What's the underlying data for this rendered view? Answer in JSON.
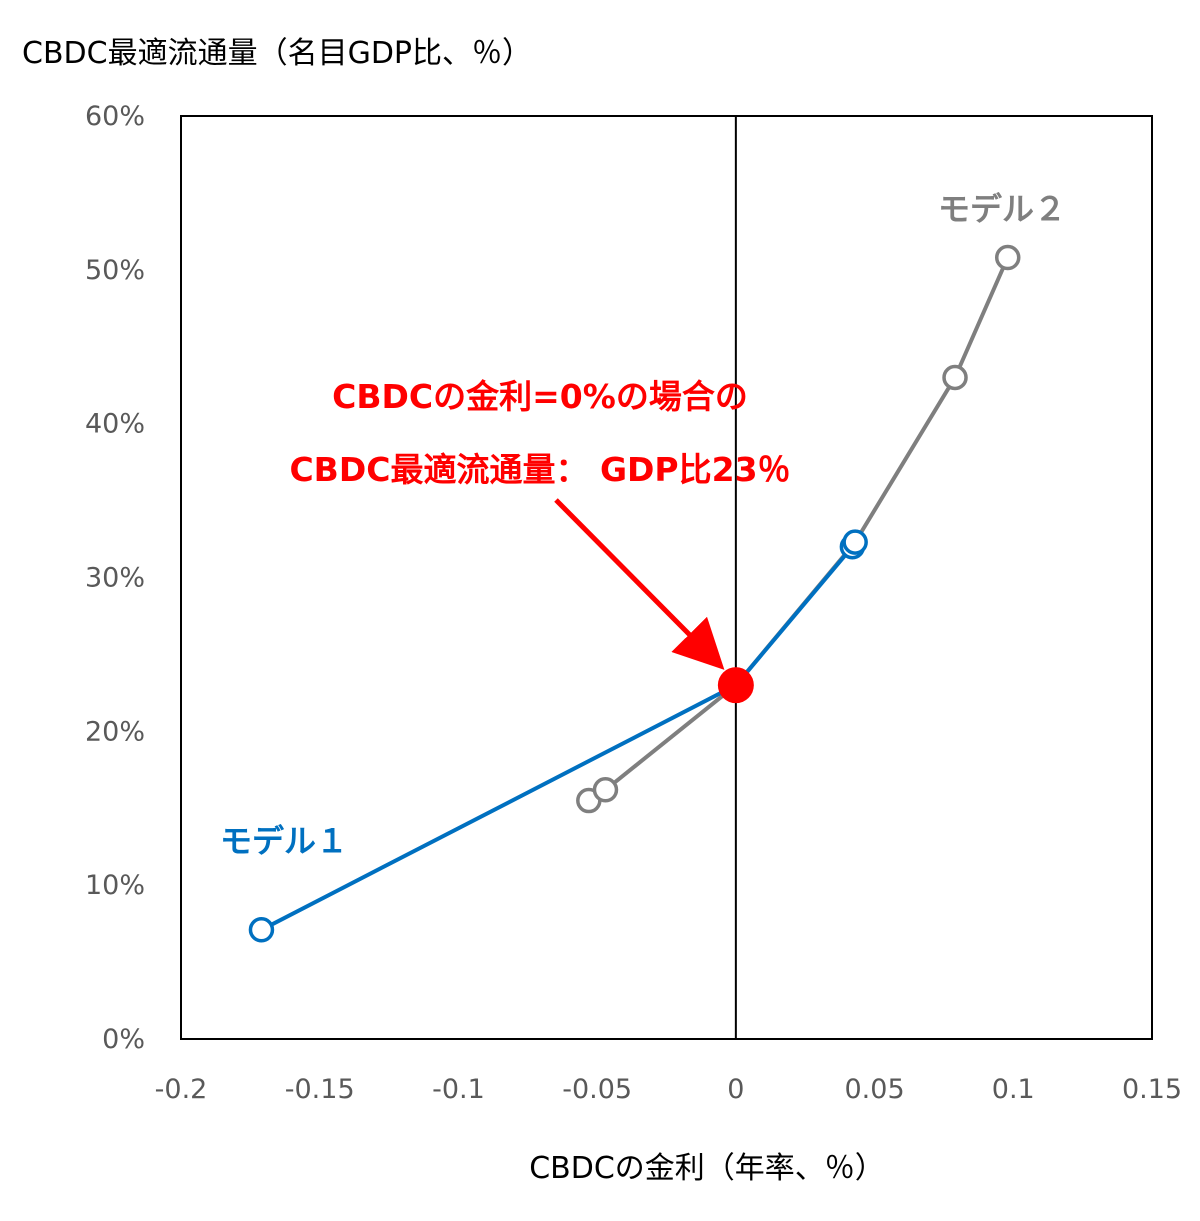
{
  "chart_data": {
    "type": "scatter",
    "ylabel": "CBDC最適流通量（名目GDP比、％）",
    "xlabel": "CBDCの金利（年率、％）",
    "xlim": [
      -0.2,
      0.15
    ],
    "ylim": [
      0,
      0.6
    ],
    "x_ticks": [
      -0.2,
      -0.15,
      -0.1,
      -0.05,
      0,
      0.05,
      0.1,
      0.15
    ],
    "x_tick_labels": [
      "-0.2",
      "-0.15",
      "-0.1",
      "-0.05",
      "0",
      "0.05",
      "0.1",
      "0.15"
    ],
    "y_ticks": [
      0,
      0.1,
      0.2,
      0.3,
      0.4,
      0.5,
      0.6
    ],
    "y_tick_labels": [
      "0%",
      "10%",
      "20%",
      "30%",
      "40%",
      "50%",
      "60%"
    ],
    "grid": false,
    "series": [
      {
        "name": "モデル２",
        "color": "#7f7f7f",
        "marker": "open-circle",
        "points": [
          {
            "x": -0.053,
            "y": 0.155
          },
          {
            "x": -0.047,
            "y": 0.162
          },
          {
            "x": 0,
            "y": 0.23
          },
          {
            "x": 0.043,
            "y": 0.323
          },
          {
            "x": 0.079,
            "y": 0.43
          },
          {
            "x": 0.098,
            "y": 0.508
          }
        ],
        "open_marker_indices": [
          0,
          1,
          4,
          5
        ]
      },
      {
        "name": "モデル１",
        "color": "#0070c0",
        "marker": "open-circle",
        "points": [
          {
            "x": -0.171,
            "y": 0.071
          },
          {
            "x": 0,
            "y": 0.23
          },
          {
            "x": 0.042,
            "y": 0.32
          },
          {
            "x": 0.043,
            "y": 0.323
          }
        ],
        "open_marker_indices": [
          0,
          2,
          3
        ]
      }
    ],
    "highlight_point": {
      "x": 0,
      "y": 0.23,
      "color": "#ff0000"
    },
    "vertical_reference_line": {
      "x": 0,
      "color": "#000000"
    },
    "annotation": {
      "lines": [
        "CBDCの金利=0%の場合の",
        "CBDC最適流通量： GDP比23％"
      ],
      "color": "#ff0000",
      "arrow_target": {
        "x": 0,
        "y": 0.23
      }
    }
  }
}
